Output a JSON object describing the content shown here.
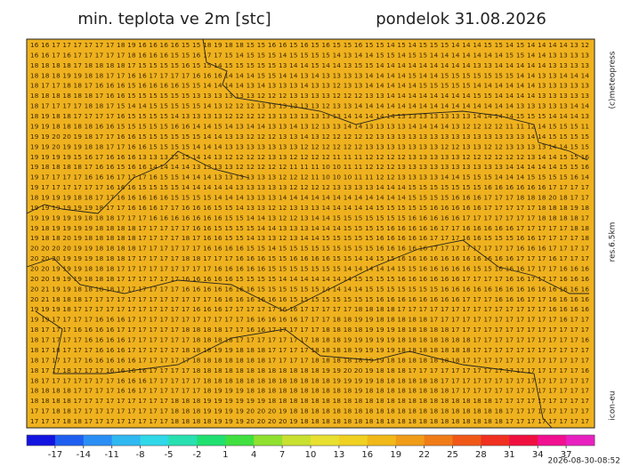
{
  "title": "min. teplota ve 2m [stc]",
  "date": "pondelok 31.08.2026",
  "credit": "(c)meteopress",
  "resolution": "res.6.5km",
  "model": "icon-eu",
  "timestamp": "2026-08-30-08:52",
  "grid_rows": [
    "16 16 17 17 17 17 17 17 18 19 16 16 16 16 15 15 18 19 18 18 15 15 16 16 15 16 15 16 15 15 16 15 15 14 15 14 15 15 15 14 14 14 15 15 14 15 14 14 14 14 13 12",
    "16 16 17 16 17 17 17 17 17 18 16 16 16 15 15 16 17 17 15 14 15 15 15 14 15 15 15 15 14 13 14 14 15 15 14 15 15 14 14 14 14 14 14 14 15 15 14 14 13 13 13 13",
    "18 18 18 18 17 18 18 18 18 17 15 15 15 15 16 15 15 14 15 15 15 15 15 13 14 14 15 14 14 13 15 15 14 14 14 14 14 14 14 14 14 13 13 14 14 14 14 14 13 13 13 13",
    "18 18 18 19 19 18 18 17 17 16 16 17 17 17 17 16 16 16 14 14 14 15 15 14 14 13 14 13 13 13 13 14 14 14 14 15 14 14 15 15 15 15 15 15 15 14 14 13 13 14 14 14",
    "18 17 17 18 18 17 16 16 16 15 16 16 16 16 15 15 14 14 14 14 13 14 13 13 13 14 13 13 12 13 13 14 14 14 14 14 15 15 15 15 15 14 14 14 14 14 14 13 13 13 13 13",
    "18 18 18 18 18 18 17 16 16 15 15 15 15 15 15 13 13 13 13 13 13 12 12 12 13 13 13 13 12 12 12 13 13 14 14 14 14 14 14 14 14 15 15 14 14 14 14 13 13 13 13 13",
    "18 17 17 17 17 18 18 17 15 14 14 15 15 15 15 15 14 13 12 12 12 13 13 13 13 13 13 12 13 13 14 14 14 14 14 14 14 14 14 14 14 14 14 14 14 13 13 13 13 13 14 14",
    "18 19 18 18 17 17 17 17 16 15 15 15 15 14 13 13 13 13 12 12 12 12 13 13 13 13 13 13 13 14 14 14 14 14 13 13 13 13 13 13 13 14 14 14 14 15 15 15 14 14 14 13",
    "19 19 18 18 18 18 16 16 15 15 15 15 15 16 16 14 14 15 14 13 14 14 13 13 14 13 12 13 13 14 14 13 13 13 13 14 14 14 14 13 12 12 12 12 11 11 12 14 15 15 15 11",
    "19 19 20 20 19 18 17 17 16 16 15 15 15 15 15 15 14 14 13 13 12 12 12 13 13 14 13 12 12 12 12 12 13 13 13 13 13 13 13 13 13 13 13 13 13 13 14 14 15 15 15 15",
    "19 19 20 19 19 18 18 17 17 16 16 15 15 15 15 14 14 14 13 13 13 13 13 13 13 12 12 12 12 12 12 13 13 13 13 13 13 13 12 12 13 13 12 12 13 13 13 13 14 14 15 15",
    "19 19 19 19 15 16 17 16 16 16 13 13 13 15 15 14 14 13 12 12 12 12 13 13 12 12 12 12 11 11 11 12 12 12 12 13 13 13 13 13 12 12 12 12 12 12 13 14 14 15 15 16",
    "19 18 18 18 18 17 16 16 15 16 16 14 14 14 14 13 13 13 13 12 12 12 12 12 11 11 11 10 10 11 11 12 12 12 13 13 13 13 13 13 13 13 13 13 14 14 14 14 14 15 15 16",
    "19 17 17 17 17 16 16 16 17 17 17 16 15 15 14 14 14 13 13 13 13 13 13 12 12 12 11 10 10 10 11 11 12 12 13 13 13 13 14 14 15 15 15 14 14 14 15 15 15 15 16 14",
    "19 17 17 17 17 17 17 16 16 16 15 15 15 15 14 14 14 14 14 13 13 13 13 13 12 12 12 12 13 13 13 13 14 14 14 15 15 15 15 15 15 15 16 16 16 16 16 16 17 17 17 17",
    "18 19 19 19 18 18 17 17 16 16 16 16 16 15 15 15 15 14 14 14 13 13 13 14 14 14 14 14 14 14 14 14 14 14 14 15 15 15 15 16 16 16 17 17 17 18 18 18 20 18 17 17",
    "19 19 19 19 19 19 18 17 17 16 16 16 17 17 16 16 16 15 15 14 13 13 12 12 13 13 13 14 14 14 14 14 15 15 15 15 15 16 16 16 16 16 17 17 17 17 17 18 18 18 19 18",
    "19 19 19 19 19 18 18 18 17 17 17 16 16 16 16 16 16 16 15 15 14 14 13 12 12 13 14 14 15 15 15 15 15 15 15 16 16 16 16 16 17 17 17 17 17 17 17 18 18 18 18 17",
    "19 18 19 19 19 19 18 18 18 18 17 17 17 17 17 16 16 15 15 15 15 14 14 13 13 13 14 14 14 15 15 15 15 16 16 16 16 16 17 17 16 16 16 16 16 17 17 17 17 17 18 18",
    "19 18 18 20 19 18 18 18 18 18 17 17 17 17 18 17 16 16 15 15 14 13 13 12 13 14 14 15 15 15 15 15 16 16 16 16 16 17 17 17 16 16 15 15 15 16 16 17 17 17 17 18",
    "20 20 20 20 19 19 18 18 18 18 17 17 17 17 17 17 16 16 16 16 15 15 14 15 15 15 15 15 15 15 15 15 16 16 16 16 16 17 17 17 17 17 17 17 17 16 16 16 17 17 17 17",
    "20 20 20 19 19 19 18 18 18 17 17 17 17 17 18 18 17 17 17 16 16 16 15 15 16 16 16 16 15 15 14 14 15 15 16 16 16 16 16 16 16 16 16 16 16 17 17 17 16 17 17 17",
    "20 20 19 19 19 18 18 18 17 17 17 17 17 17 17 17 17 16 16 16 16 16 15 15 15 15 15 15 15 14 14 14 14 14 15 15 16 16 16 16 16 15 15 16 16 16 17 17 17 16 16 16",
    "20 20 19 19 19 18 18 18 17 17 17 17 17 17 16 16 16 16 16 15 15 15 15 14 14 14 14 14 14 14 15 15 15 15 16 16 16 16 16 16 17 17 17 17 16 16 17 17 17 16 16 16",
    "20 21 19 19 18 18 18 18 17 17 17 17 17 17 16 16 16 16 16 16 16 15 15 15 15 15 15 14 14 14 14 15 15 15 15 15 15 15 16 16 16 16 16 16 16 16 16 16 16 16 16 16",
    "20 21 18 18 18 17 17 17 17 17 17 17 17 17 17 17 17 16 16 16 16 16 16 16 15 15 15 15 15 15 15 15 16 16 16 16 16 16 16 16 17 17 17 16 16 16 17 17 16 16 16 16",
    "19 19 19 18 17 17 17 17 17 17 17 17 17 17 17 16 16 16 17 17 17 17 17 16 16 17 17 17 17 17 18 18 18 18 17 17 17 17 17 17 17 17 17 17 17 17 17 17 16 16 16 16",
    "19 19 17 17 17 17 16 16 16 17 17 17 17 17 17 17 17 17 17 17 16 16 16 16 16 17 17 17 18 18 19 19 18 18 18 18 18 17 17 17 17 17 17 17 17 17 17 17 17 16 17 17",
    "18 17 17 17 16 16 16 16 17 17 17 17 17 17 18 18 18 18 17 17 16 16 17 17 17 17 17 18 18 18 18 19 19 19 18 18 18 18 18 17 17 17 17 17 17 17 17 17 17 17 17 17",
    "18 17 17 17 17 16 16 16 16 17 17 17 17 17 17 18 18 18 18 17 17 17 17 17 17 17 18 18 18 19 19 19 19 19 18 18 18 18 18 18 18 17 17 17 17 17 17 17 17 17 17 16",
    "18 17 18 17 17 17 16 16 16 17 17 17 17 17 18 18 18 19 19 18 18 18 17 17 17 17 18 18 18 18 19 19 19 19 18 18 18 18 18 18 18 17 17 17 17 17 17 17 17 17 17 17",
    "18 17 17 17 17 16 16 16 16 16 17 17 17 17 17 18 18 18 18 18 18 18 17 17 17 17 18 18 18 18 18 19 19 18 18 18 18 18 18 18 17 17 17 17 17 17 17 17 17 17 17 17",
    "18 17 17 18 17 17 17 16 16 16 16 17 17 17 17 18 18 18 18 18 18 18 18 18 18 18 18 19 19 20 20 19 18 18 18 17 17 17 17 17 17 17 17 17 17 17 17 17 17 17 17 16",
    "18 17 17 17 17 17 17 17 16 16 16 17 17 17 17 17 18 18 18 18 18 18 18 18 18 18 18 18 19 19 19 19 18 18 18 18 18 18 17 17 17 17 17 17 17 17 17 17 17 17 17 17",
    "18 18 18 18 17 17 17 17 16 16 17 17 17 17 17 17 18 19 19 19 18 18 18 18 18 18 18 18 18 18 19 18 18 18 18 18 18 18 18 17 17 17 17 17 17 17 17 17 17 17 17 17",
    "18 18 18 18 17 17 17 17 17 17 17 17 17 18 18 18 19 19 19 19 19 19 18 18 18 18 18 18 18 18 18 18 18 18 18 18 18 18 18 18 18 18 18 17 17 17 17 17 17 17 17 17",
    "17 17 18 18 17 17 17 17 17 17 17 17 17 18 18 18 19 19 19 19 20 20 20 19 18 18 18 18 18 18 18 18 18 18 18 18 18 18 18 18 18 18 18 18 17 17 17 17 17 17 17 17",
    "17 17 17 18 18 17 17 17 17 17 17 17 17 18 18 18 18 19 19 19 20 20 20 20 19 18 18 18 18 18 18 18 18 18 18 18 18 18 18 18 18 18 18 18 17 17 17 17 17 17 17 17"
  ],
  "colorbar": {
    "lim": [
      -20,
      40
    ],
    "ticks": [
      -17,
      -14,
      -11,
      -8,
      -5,
      -2,
      1,
      4,
      7,
      10,
      13,
      16,
      19,
      22,
      25,
      28,
      31,
      34,
      37
    ],
    "colors": [
      "#1414e0",
      "#1e5ff0",
      "#2b8ef5",
      "#30b8f0",
      "#30d8e8",
      "#28e0b0",
      "#20e070",
      "#40e040",
      "#90e030",
      "#c8e030",
      "#e8e030",
      "#f0d020",
      "#f0b818",
      "#f09c18",
      "#f07c18",
      "#f05818",
      "#f03020",
      "#f01040",
      "#f01090",
      "#e820c0"
    ]
  }
}
